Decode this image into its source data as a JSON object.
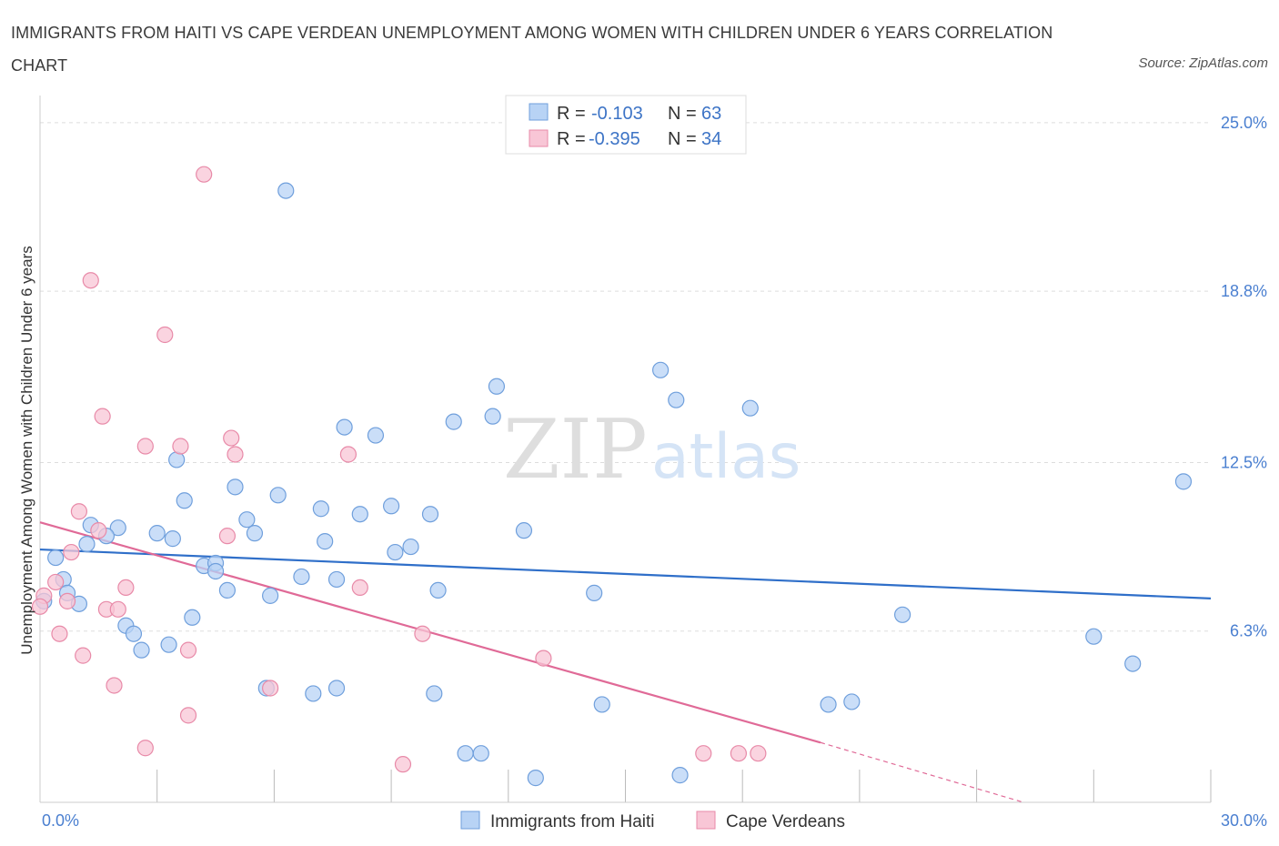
{
  "title": "IMMIGRANTS FROM HAITI VS CAPE VERDEAN UNEMPLOYMENT AMONG WOMEN WITH CHILDREN UNDER 6 YEARS CORRELATION CHART",
  "source": "Source: ZipAtlas.com",
  "watermark": {
    "zip": "ZIP",
    "atlas": "atlas"
  },
  "colors": {
    "haiti_fill": "#b8d3f5",
    "haiti_stroke": "#6f9fdc",
    "haiti_line": "#2f6fc9",
    "cape_fill": "#f8c6d6",
    "cape_stroke": "#e88aa8",
    "cape_line": "#e06a97",
    "tick_label": "#4a7fd0",
    "grid": "#dddddd"
  },
  "legend": {
    "rows": [
      {
        "r_label": "R =",
        "r_value": "-0.103",
        "n_label": "N =",
        "n_value": "63"
      },
      {
        "r_label": "R =",
        "r_value": "-0.395",
        "n_label": "N =",
        "n_value": "34"
      }
    ]
  },
  "chart_data": {
    "type": "scatter",
    "xlabel": "",
    "ylabel": "Unemployment Among Women with Children Under 6 years",
    "xlim": [
      0,
      30
    ],
    "ylim": [
      0,
      26
    ],
    "x_tick_labels": [
      {
        "value": 0,
        "label": "0.0%"
      },
      {
        "value": 30,
        "label": "30.0%"
      }
    ],
    "x_minor_ticks": [
      3,
      6,
      9,
      12,
      15,
      18,
      21,
      24,
      27,
      30
    ],
    "y_ticks": [
      {
        "value": 6.3,
        "label": "6.3%"
      },
      {
        "value": 12.5,
        "label": "12.5%"
      },
      {
        "value": 18.8,
        "label": "18.8%"
      },
      {
        "value": 25.0,
        "label": "25.0%"
      }
    ],
    "grid": "horizontal dashed",
    "legend_position": "top-center",
    "series": [
      {
        "name": "Immigrants from Haiti",
        "R": -0.103,
        "N": 63,
        "trend": {
          "x": [
            0,
            30
          ],
          "y": [
            9.3,
            7.5
          ]
        },
        "points": [
          [
            6.3,
            22.5
          ],
          [
            15.9,
            15.9
          ],
          [
            11.7,
            15.3
          ],
          [
            16.3,
            14.8
          ],
          [
            18.2,
            14.5
          ],
          [
            10.6,
            14.0
          ],
          [
            11.6,
            14.2
          ],
          [
            7.8,
            13.8
          ],
          [
            8.6,
            13.5
          ],
          [
            3.5,
            12.6
          ],
          [
            5.0,
            11.6
          ],
          [
            6.1,
            11.3
          ],
          [
            3.7,
            11.1
          ],
          [
            29.3,
            11.8
          ],
          [
            9.0,
            10.9
          ],
          [
            7.2,
            10.8
          ],
          [
            10.0,
            10.6
          ],
          [
            8.2,
            10.6
          ],
          [
            5.3,
            10.4
          ],
          [
            1.3,
            10.2
          ],
          [
            2.0,
            10.1
          ],
          [
            3.0,
            9.9
          ],
          [
            12.4,
            10.0
          ],
          [
            5.5,
            9.9
          ],
          [
            3.4,
            9.7
          ],
          [
            1.7,
            9.8
          ],
          [
            7.3,
            9.6
          ],
          [
            1.2,
            9.5
          ],
          [
            0.4,
            9.0
          ],
          [
            9.5,
            9.4
          ],
          [
            9.1,
            9.2
          ],
          [
            4.2,
            8.7
          ],
          [
            4.5,
            8.8
          ],
          [
            4.5,
            8.5
          ],
          [
            6.7,
            8.3
          ],
          [
            7.6,
            8.2
          ],
          [
            0.6,
            8.2
          ],
          [
            4.8,
            7.8
          ],
          [
            0.7,
            7.7
          ],
          [
            10.2,
            7.8
          ],
          [
            14.2,
            7.7
          ],
          [
            5.9,
            7.6
          ],
          [
            1.0,
            7.3
          ],
          [
            0.1,
            7.4
          ],
          [
            3.9,
            6.8
          ],
          [
            2.2,
            6.5
          ],
          [
            2.4,
            6.2
          ],
          [
            22.1,
            6.9
          ],
          [
            27.0,
            6.1
          ],
          [
            3.3,
            5.8
          ],
          [
            2.6,
            5.6
          ],
          [
            28.0,
            5.1
          ],
          [
            5.8,
            4.2
          ],
          [
            7.6,
            4.2
          ],
          [
            7.0,
            4.0
          ],
          [
            10.1,
            4.0
          ],
          [
            14.4,
            3.6
          ],
          [
            20.2,
            3.6
          ],
          [
            20.8,
            3.7
          ],
          [
            10.9,
            1.8
          ],
          [
            11.3,
            1.8
          ],
          [
            12.7,
            0.9
          ],
          [
            16.4,
            1.0
          ]
        ]
      },
      {
        "name": "Cape Verdeans",
        "R": -0.395,
        "N": 34,
        "trend": {
          "x": [
            0,
            20.0
          ],
          "y": [
            10.3,
            2.2
          ]
        },
        "trend_extension": {
          "x": [
            20.0,
            25.2
          ],
          "y": [
            2.2,
            0.0
          ]
        },
        "points": [
          [
            4.2,
            23.1
          ],
          [
            1.3,
            19.2
          ],
          [
            3.2,
            17.2
          ],
          [
            1.6,
            14.2
          ],
          [
            4.9,
            13.4
          ],
          [
            2.7,
            13.1
          ],
          [
            3.6,
            13.1
          ],
          [
            5.0,
            12.8
          ],
          [
            7.9,
            12.8
          ],
          [
            1.0,
            10.7
          ],
          [
            1.5,
            10.0
          ],
          [
            4.8,
            9.8
          ],
          [
            0.8,
            9.2
          ],
          [
            0.4,
            8.1
          ],
          [
            2.2,
            7.9
          ],
          [
            8.2,
            7.9
          ],
          [
            0.1,
            7.6
          ],
          [
            0.7,
            7.4
          ],
          [
            1.7,
            7.1
          ],
          [
            2.0,
            7.1
          ],
          [
            0.5,
            6.2
          ],
          [
            9.8,
            6.2
          ],
          [
            1.1,
            5.4
          ],
          [
            3.8,
            5.6
          ],
          [
            12.9,
            5.3
          ],
          [
            1.9,
            4.3
          ],
          [
            5.9,
            4.2
          ],
          [
            3.8,
            3.2
          ],
          [
            2.7,
            2.0
          ],
          [
            9.3,
            1.4
          ],
          [
            17.0,
            1.8
          ],
          [
            17.9,
            1.8
          ],
          [
            18.4,
            1.8
          ],
          [
            0.0,
            7.2
          ]
        ]
      }
    ]
  },
  "bottom_legend": [
    {
      "label": "Immigrants from Haiti"
    },
    {
      "label": "Cape Verdeans"
    }
  ]
}
